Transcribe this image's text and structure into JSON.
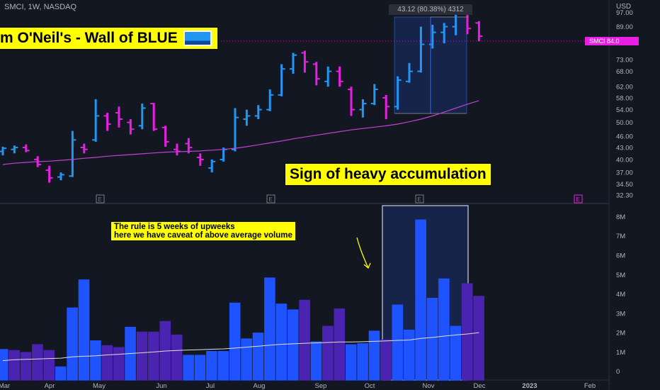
{
  "header": {
    "symbol_info": "SMCI, 1W, NASDAQ",
    "currency": "USD"
  },
  "annotations": {
    "title": "m O'Neil's - Wall of BLUE",
    "accumulation": "Sign of heavy accumulation",
    "rule_line1": "The rule is 5 weeks of upweeks",
    "rule_line2": "here we have caveat of above average volume",
    "measure_label": "43.12 (80.38%) 4312",
    "price_tag": "SMCI  84.0"
  },
  "colors": {
    "background": "#131722",
    "up": "#2196f3",
    "down": "#e91ee3",
    "volume_up": "#1e53ff",
    "volume_down": "#4a23b0",
    "ma_price": "#c040d0",
    "ma_volume": "#e0e0e0",
    "banner": "#ffff00",
    "grid": "#2a2e39"
  },
  "chart_data": [
    {
      "type": "bar",
      "name": "price",
      "scale": "log",
      "ylim": [
        32.3,
        98
      ],
      "y_ticks": [
        97.0,
        89.0,
        81.0,
        73.0,
        68.0,
        62.0,
        58.0,
        54.0,
        50.0,
        46.0,
        43.0,
        40.0,
        37.0,
        34.5,
        32.3
      ],
      "x_ticks": [
        "Mar",
        "Apr",
        "May",
        "Jun",
        "Jul",
        "Aug",
        "Sep",
        "Oct",
        "Nov",
        "Dec",
        "2023",
        "Feb"
      ],
      "earnings_markers": [
        "E",
        "E",
        "E",
        "E"
      ],
      "bars": [
        {
          "o": 42.0,
          "h": 43.2,
          "l": 41.0,
          "c": 42.8,
          "up": true
        },
        {
          "o": 42.5,
          "h": 43.5,
          "l": 41.5,
          "c": 43.0,
          "up": true
        },
        {
          "o": 43.0,
          "h": 43.8,
          "l": 41.8,
          "c": 42.2,
          "up": false
        },
        {
          "o": 40.0,
          "h": 40.8,
          "l": 38.2,
          "c": 38.8,
          "up": false
        },
        {
          "o": 37.5,
          "h": 38.5,
          "l": 34.8,
          "c": 35.8,
          "up": false
        },
        {
          "o": 36.0,
          "h": 37.0,
          "l": 35.3,
          "c": 36.5,
          "up": true
        },
        {
          "o": 36.2,
          "h": 47.5,
          "l": 36.0,
          "c": 45.0,
          "up": true
        },
        {
          "o": 43.0,
          "h": 44.0,
          "l": 41.5,
          "c": 42.5,
          "up": false
        },
        {
          "o": 45.0,
          "h": 57.5,
          "l": 44.5,
          "c": 52.0,
          "up": true
        },
        {
          "o": 52.0,
          "h": 53.0,
          "l": 47.5,
          "c": 49.5,
          "up": false
        },
        {
          "o": 53.0,
          "h": 55.0,
          "l": 48.5,
          "c": 51.0,
          "up": false
        },
        {
          "o": 50.0,
          "h": 51.0,
          "l": 46.5,
          "c": 48.0,
          "up": false
        },
        {
          "o": 49.0,
          "h": 56.0,
          "l": 48.0,
          "c": 54.5,
          "up": true
        },
        {
          "o": 56.0,
          "h": 56.2,
          "l": 47.5,
          "c": 48.0,
          "up": false
        },
        {
          "o": 48.5,
          "h": 49.0,
          "l": 43.2,
          "c": 44.5,
          "up": false
        },
        {
          "o": 42.5,
          "h": 44.0,
          "l": 41.0,
          "c": 42.0,
          "up": false
        },
        {
          "o": 44.0,
          "h": 45.5,
          "l": 41.5,
          "c": 43.0,
          "up": false
        },
        {
          "o": 40.5,
          "h": 41.5,
          "l": 38.5,
          "c": 40.0,
          "up": false
        },
        {
          "o": 38.0,
          "h": 40.0,
          "l": 37.0,
          "c": 39.5,
          "up": true
        },
        {
          "o": 40.0,
          "h": 43.0,
          "l": 39.5,
          "c": 42.5,
          "up": true
        },
        {
          "o": 42.5,
          "h": 54.5,
          "l": 42.0,
          "c": 51.5,
          "up": true
        },
        {
          "o": 51.0,
          "h": 54.0,
          "l": 49.0,
          "c": 52.0,
          "up": true
        },
        {
          "o": 52.0,
          "h": 55.5,
          "l": 51.0,
          "c": 54.0,
          "up": true
        },
        {
          "o": 54.0,
          "h": 61.0,
          "l": 53.5,
          "c": 59.0,
          "up": true
        },
        {
          "o": 59.0,
          "h": 71.0,
          "l": 58.5,
          "c": 69.0,
          "up": true
        },
        {
          "o": 69.0,
          "h": 76.0,
          "l": 67.0,
          "c": 75.0,
          "up": true
        },
        {
          "o": 76.0,
          "h": 77.0,
          "l": 67.5,
          "c": 72.0,
          "up": false
        },
        {
          "o": 71.0,
          "h": 72.0,
          "l": 62.5,
          "c": 65.0,
          "up": false
        },
        {
          "o": 64.0,
          "h": 70.0,
          "l": 62.0,
          "c": 68.0,
          "up": true
        },
        {
          "o": 68.0,
          "h": 70.0,
          "l": 62.0,
          "c": 64.0,
          "up": false
        },
        {
          "o": 61.0,
          "h": 62.0,
          "l": 52.0,
          "c": 54.0,
          "up": false
        },
        {
          "o": 54.0,
          "h": 57.5,
          "l": 51.5,
          "c": 56.0,
          "up": true
        },
        {
          "o": 56.0,
          "h": 63.0,
          "l": 55.5,
          "c": 61.0,
          "up": true
        },
        {
          "o": 58.0,
          "h": 59.0,
          "l": 51.0,
          "c": 55.0,
          "up": false
        },
        {
          "o": 55.0,
          "h": 66.0,
          "l": 54.0,
          "c": 64.5,
          "up": true
        },
        {
          "o": 64.0,
          "h": 71.5,
          "l": 63.5,
          "c": 68.0,
          "up": true
        },
        {
          "o": 68.0,
          "h": 89.0,
          "l": 67.5,
          "c": 80.0,
          "up": true
        },
        {
          "o": 80.0,
          "h": 90.0,
          "l": 78.0,
          "c": 86.0,
          "up": true
        },
        {
          "o": 86.0,
          "h": 91.0,
          "l": 80.5,
          "c": 89.0,
          "up": true
        },
        {
          "o": 89.0,
          "h": 98.0,
          "l": 84.5,
          "c": 96.0,
          "up": true
        },
        {
          "o": 96.0,
          "h": 97.0,
          "l": 85.0,
          "c": 88.0,
          "up": false
        },
        {
          "o": 91.0,
          "h": 92.0,
          "l": 81.5,
          "c": 84.0,
          "up": false
        }
      ],
      "ma_line": [
        38.8,
        39.1,
        39.3,
        39.5,
        39.6,
        39.8,
        40.0,
        40.3,
        40.5,
        40.8,
        41.0,
        41.2,
        41.4,
        41.6,
        41.8,
        41.9,
        42.0,
        42.1,
        42.3,
        42.5,
        42.8,
        43.2,
        43.7,
        44.2,
        44.7,
        45.3,
        45.8,
        46.3,
        46.8,
        47.3,
        47.8,
        48.2,
        48.6,
        49.0,
        49.5,
        50.2,
        51.0,
        52.0,
        53.2,
        54.5,
        55.8,
        57.0
      ]
    },
    {
      "type": "bar",
      "name": "volume",
      "ylim": [
        -0.6,
        8.2
      ],
      "unit": "M",
      "y_ticks": [
        "8M",
        "7M",
        "6M",
        "5M",
        "4M",
        "3M",
        "2M",
        "1M",
        "0"
      ],
      "values": [
        1.15,
        1.1,
        1.0,
        1.4,
        1.1,
        0.25,
        3.3,
        4.75,
        1.6,
        1.35,
        1.25,
        2.3,
        2.05,
        2.05,
        2.6,
        1.9,
        0.85,
        0.85,
        1.05,
        1.05,
        3.55,
        1.7,
        2.0,
        4.85,
        3.5,
        3.2,
        3.7,
        1.55,
        2.35,
        3.25,
        1.4,
        1.45,
        2.1,
        1.65,
        3.45,
        2.15,
        7.85,
        3.8,
        4.8,
        2.35,
        4.55,
        3.9
      ],
      "up": [
        true,
        false,
        false,
        false,
        false,
        true,
        true,
        true,
        true,
        false,
        false,
        true,
        false,
        false,
        false,
        false,
        true,
        true,
        true,
        true,
        true,
        true,
        true,
        true,
        true,
        true,
        false,
        true,
        false,
        false,
        true,
        true,
        true,
        false,
        true,
        true,
        true,
        true,
        true,
        true,
        false,
        false
      ],
      "ma_line": [
        0.55,
        0.6,
        0.62,
        0.64,
        0.66,
        0.68,
        0.75,
        0.78,
        0.8,
        0.85,
        0.88,
        0.92,
        0.96,
        1.0,
        1.05,
        1.08,
        1.1,
        1.12,
        1.14,
        1.16,
        1.2,
        1.25,
        1.3,
        1.35,
        1.4,
        1.42,
        1.45,
        1.47,
        1.49,
        1.52,
        1.52,
        1.53,
        1.55,
        1.57,
        1.6,
        1.62,
        1.7,
        1.75,
        1.82,
        1.88,
        1.93,
        2.0
      ]
    }
  ]
}
